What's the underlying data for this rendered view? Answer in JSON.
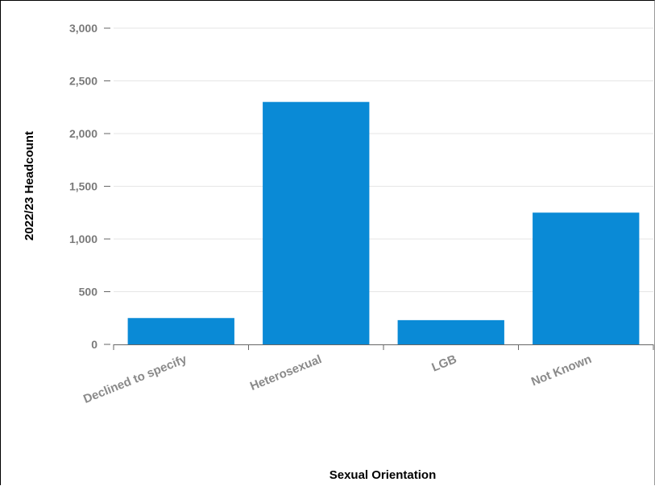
{
  "colors": {
    "bar": "#0a8ad6",
    "grid": "#e6e6e6",
    "axis": "#666666"
  },
  "chart_data": {
    "type": "bar",
    "title": "",
    "xlabel": "Sexual Orientation",
    "ylabel": "2022/23 Headcount",
    "categories": [
      "Declined to specify",
      "Heterosexual",
      "LGB",
      "Not Known"
    ],
    "values": [
      250,
      2300,
      230,
      1250
    ],
    "ylim": [
      0,
      3000
    ],
    "yticks": [
      0,
      500,
      1000,
      1500,
      2000,
      2500,
      3000
    ],
    "ytick_labels": [
      "0",
      "500",
      "1,000",
      "1,500",
      "2,000",
      "2,500",
      "3,000"
    ],
    "grid": true,
    "legend": "none"
  }
}
